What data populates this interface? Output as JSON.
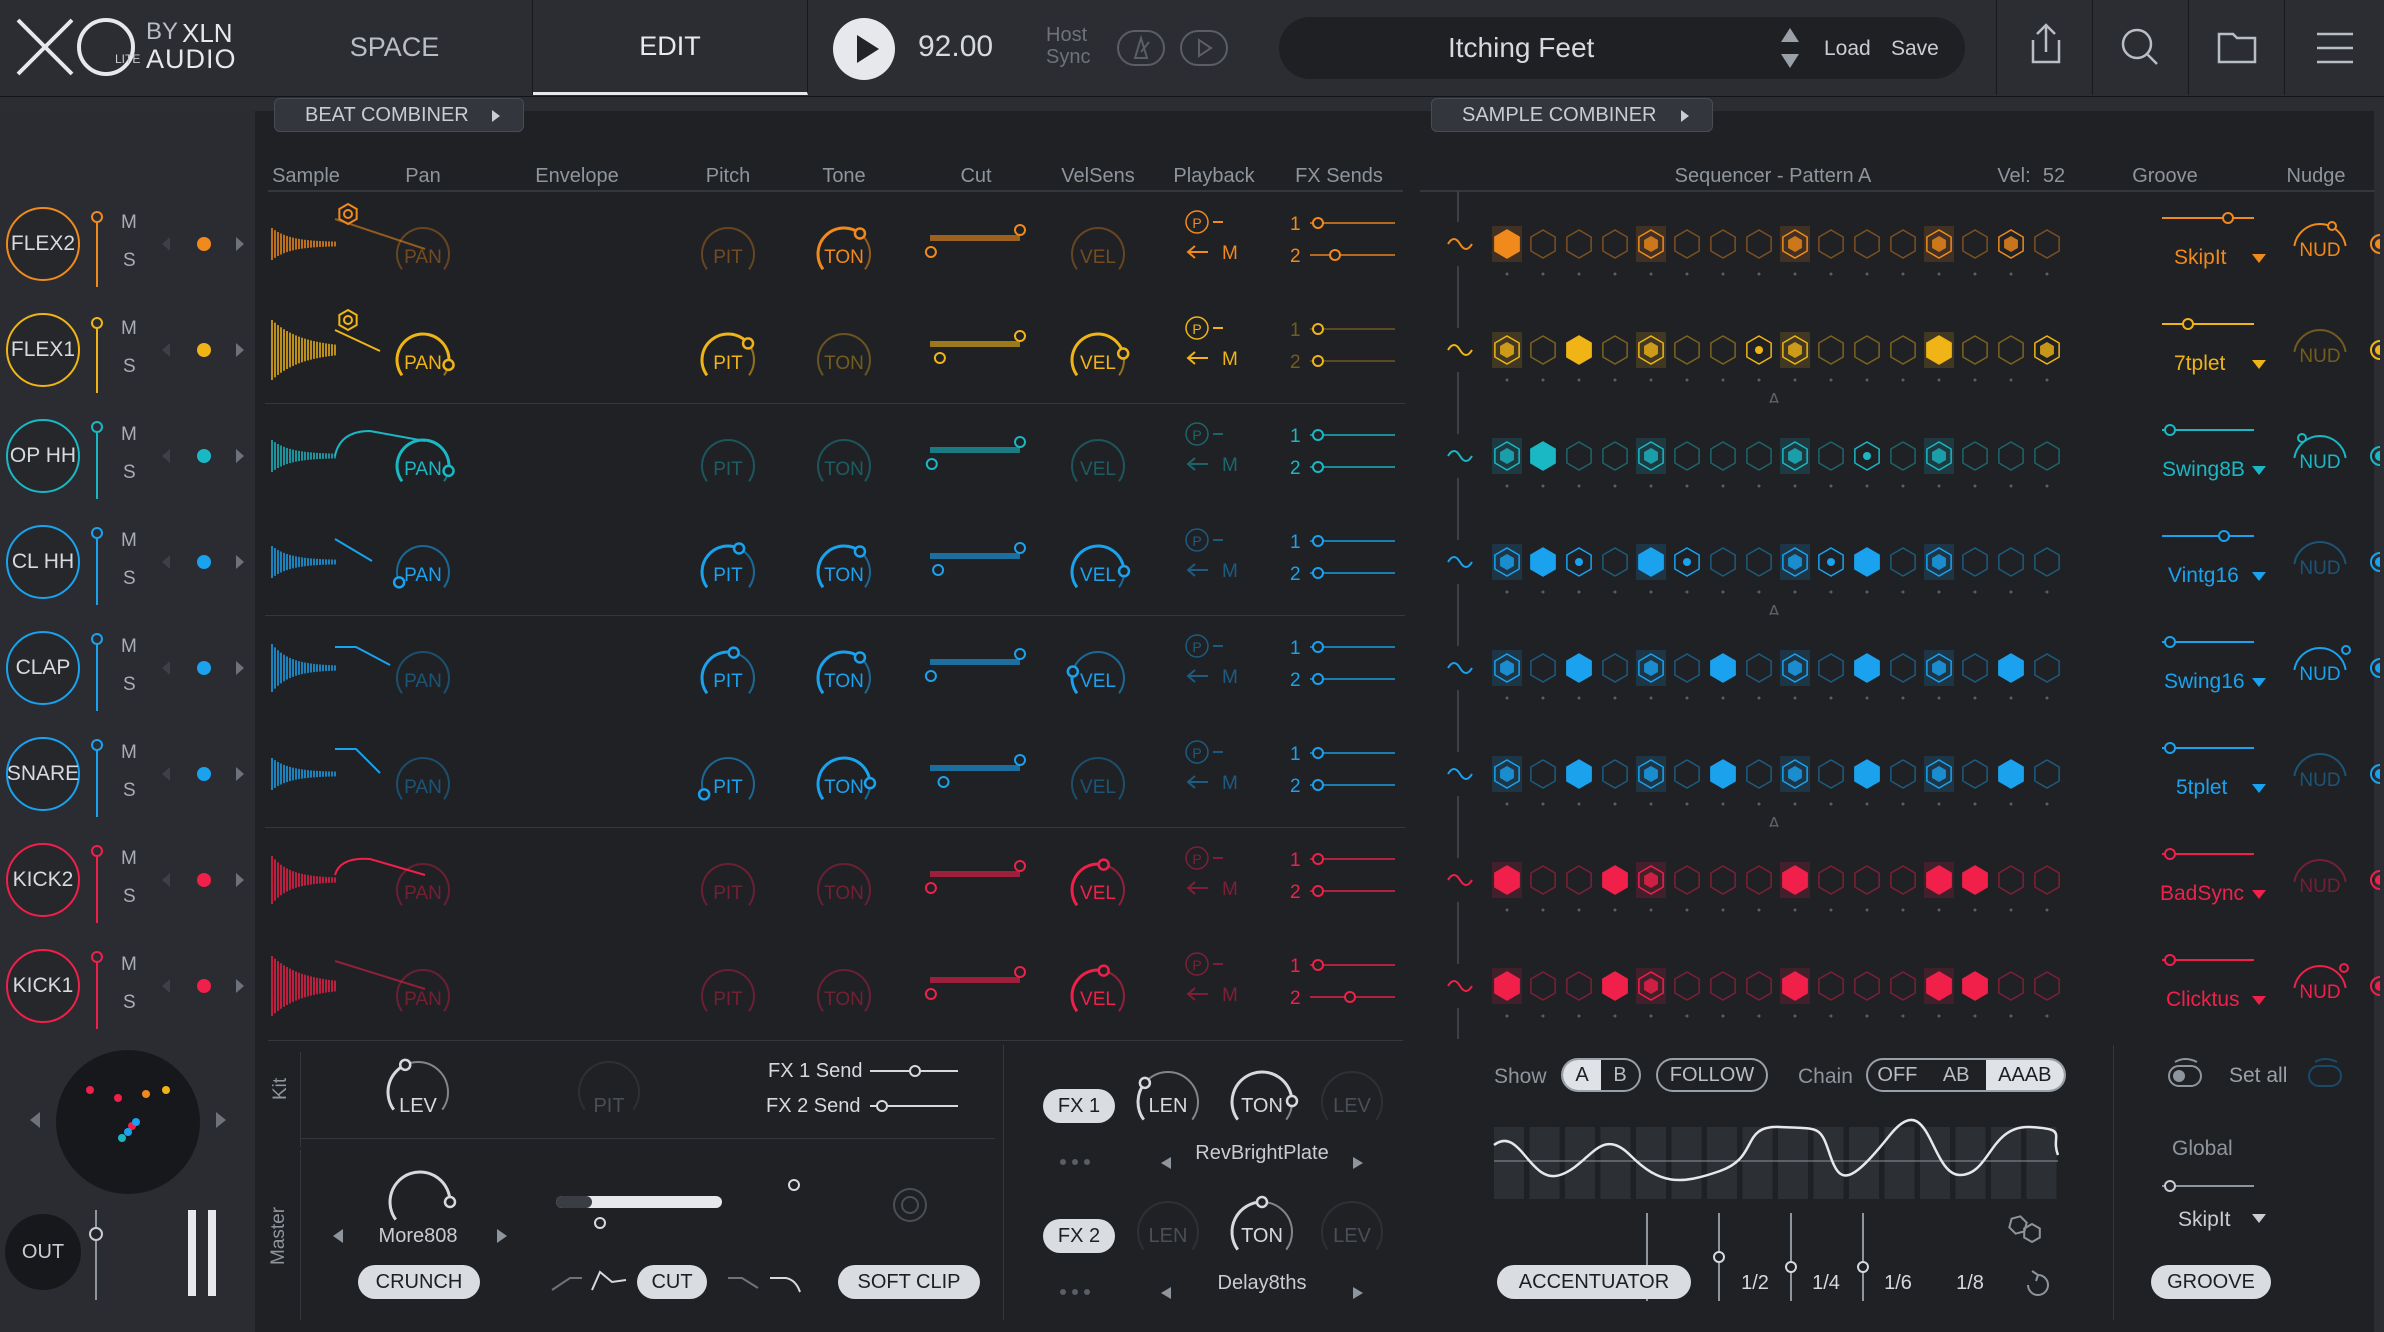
{
  "brand": {
    "by": "BY",
    "maker": "XLN",
    "audio": "AUDIO",
    "lite": "LITE"
  },
  "nav": {
    "space": "SPACE",
    "edit": "EDIT"
  },
  "transport": {
    "bpm": "92.00",
    "host_sync_1": "Host",
    "host_sync_2": "Sync"
  },
  "preset": {
    "name": "Itching Feet",
    "load": "Load",
    "save": "Save"
  },
  "combiners": {
    "beat": "BEAT COMBINER",
    "sample": "SAMPLE COMBINER"
  },
  "headers": {
    "sample": "Sample",
    "pan": "Pan",
    "envelope": "Envelope",
    "pitch": "Pitch",
    "tone": "Tone",
    "cut": "Cut",
    "velsens": "VelSens",
    "playback": "Playback",
    "fxsends": "FX Sends",
    "sequencer": "Sequencer - Pattern A",
    "vel": "Vel:",
    "vel_value": "52",
    "groove": "Groove",
    "nudge": "Nudge"
  },
  "knob_labels": {
    "pan": "PAN",
    "pitch": "PIT",
    "tone": "TON",
    "vel": "VEL",
    "nudge": "NUD",
    "m": "M",
    "s": "S",
    "p": "P",
    "send1": "1",
    "send2": "2",
    "pattern_letter": "A"
  },
  "colors": {
    "orange": "#f08a1c",
    "yellow": "#f0b416",
    "teal": "#1ab8c4",
    "blue": "#1aa2ef",
    "red": "#f0204a"
  },
  "tracks": [
    {
      "name": "FLEX2",
      "color": "orange",
      "groove": "SkipIt",
      "steps": [
        2,
        0,
        0,
        0,
        1,
        0,
        0,
        0,
        1,
        0,
        0,
        0,
        1,
        0,
        1,
        0
      ]
    },
    {
      "name": "FLEX1",
      "color": "yellow",
      "groove": "7tplet",
      "steps": [
        1,
        0,
        2,
        0,
        1,
        0,
        0,
        3,
        1,
        0,
        0,
        0,
        2,
        0,
        0,
        1
      ]
    },
    {
      "name": "OP HH",
      "color": "teal",
      "groove": "Swing8B",
      "steps": [
        1,
        2,
        0,
        0,
        1,
        0,
        0,
        0,
        1,
        0,
        3,
        0,
        1,
        0,
        0,
        0
      ]
    },
    {
      "name": "CL HH",
      "color": "blue",
      "groove": "Vintg16",
      "steps": [
        1,
        2,
        3,
        0,
        2,
        3,
        0,
        0,
        1,
        3,
        2,
        0,
        1,
        0,
        0,
        0
      ]
    },
    {
      "name": "CLAP",
      "color": "blue",
      "groove": "Swing16",
      "steps": [
        1,
        0,
        2,
        0,
        1,
        0,
        2,
        0,
        1,
        0,
        2,
        0,
        1,
        0,
        2,
        0
      ]
    },
    {
      "name": "SNARE",
      "color": "blue",
      "groove": "5tplet",
      "steps": [
        1,
        0,
        2,
        0,
        1,
        0,
        2,
        0,
        1,
        0,
        2,
        0,
        1,
        0,
        2,
        0
      ]
    },
    {
      "name": "KICK2",
      "color": "red",
      "groove": "BadSync",
      "steps": [
        2,
        0,
        0,
        2,
        1,
        0,
        0,
        0,
        2,
        0,
        0,
        0,
        2,
        2,
        0,
        0
      ]
    },
    {
      "name": "KICK1",
      "color": "red",
      "groove": "Clicktus",
      "steps": [
        2,
        0,
        0,
        2,
        1,
        0,
        0,
        0,
        2,
        0,
        0,
        0,
        2,
        2,
        0,
        0
      ]
    }
  ],
  "kit": {
    "label": "Kit",
    "lev": "LEV",
    "pit": "PIT",
    "fx1_send": "FX 1 Send",
    "fx2_send": "FX 2 Send"
  },
  "master": {
    "label": "Master",
    "preset": "More808",
    "crunch": "CRUNCH",
    "cut": "CUT",
    "soft_clip": "SOFT CLIP"
  },
  "fx": {
    "fx1": "FX 1",
    "fx2": "FX 2",
    "len": "LEN",
    "ton": "TON",
    "lev": "LEV",
    "fx1_preset": "RevBrightPlate",
    "fx2_preset": "Delay8ths"
  },
  "seq_controls": {
    "show": "Show",
    "a": "A",
    "b": "B",
    "follow": "FOLLOW",
    "chain": "Chain",
    "off": "OFF",
    "ab": "AB",
    "aaab": "AAAB",
    "accentuator": "ACCENTUATOR",
    "r1": "1/2",
    "r2": "1/4",
    "r3": "1/6",
    "r4": "1/8"
  },
  "groove_controls": {
    "set_all": "Set all",
    "global": "Global",
    "global_value": "SkipIt",
    "groove_btn": "GROOVE"
  },
  "out": {
    "label": "OUT"
  }
}
